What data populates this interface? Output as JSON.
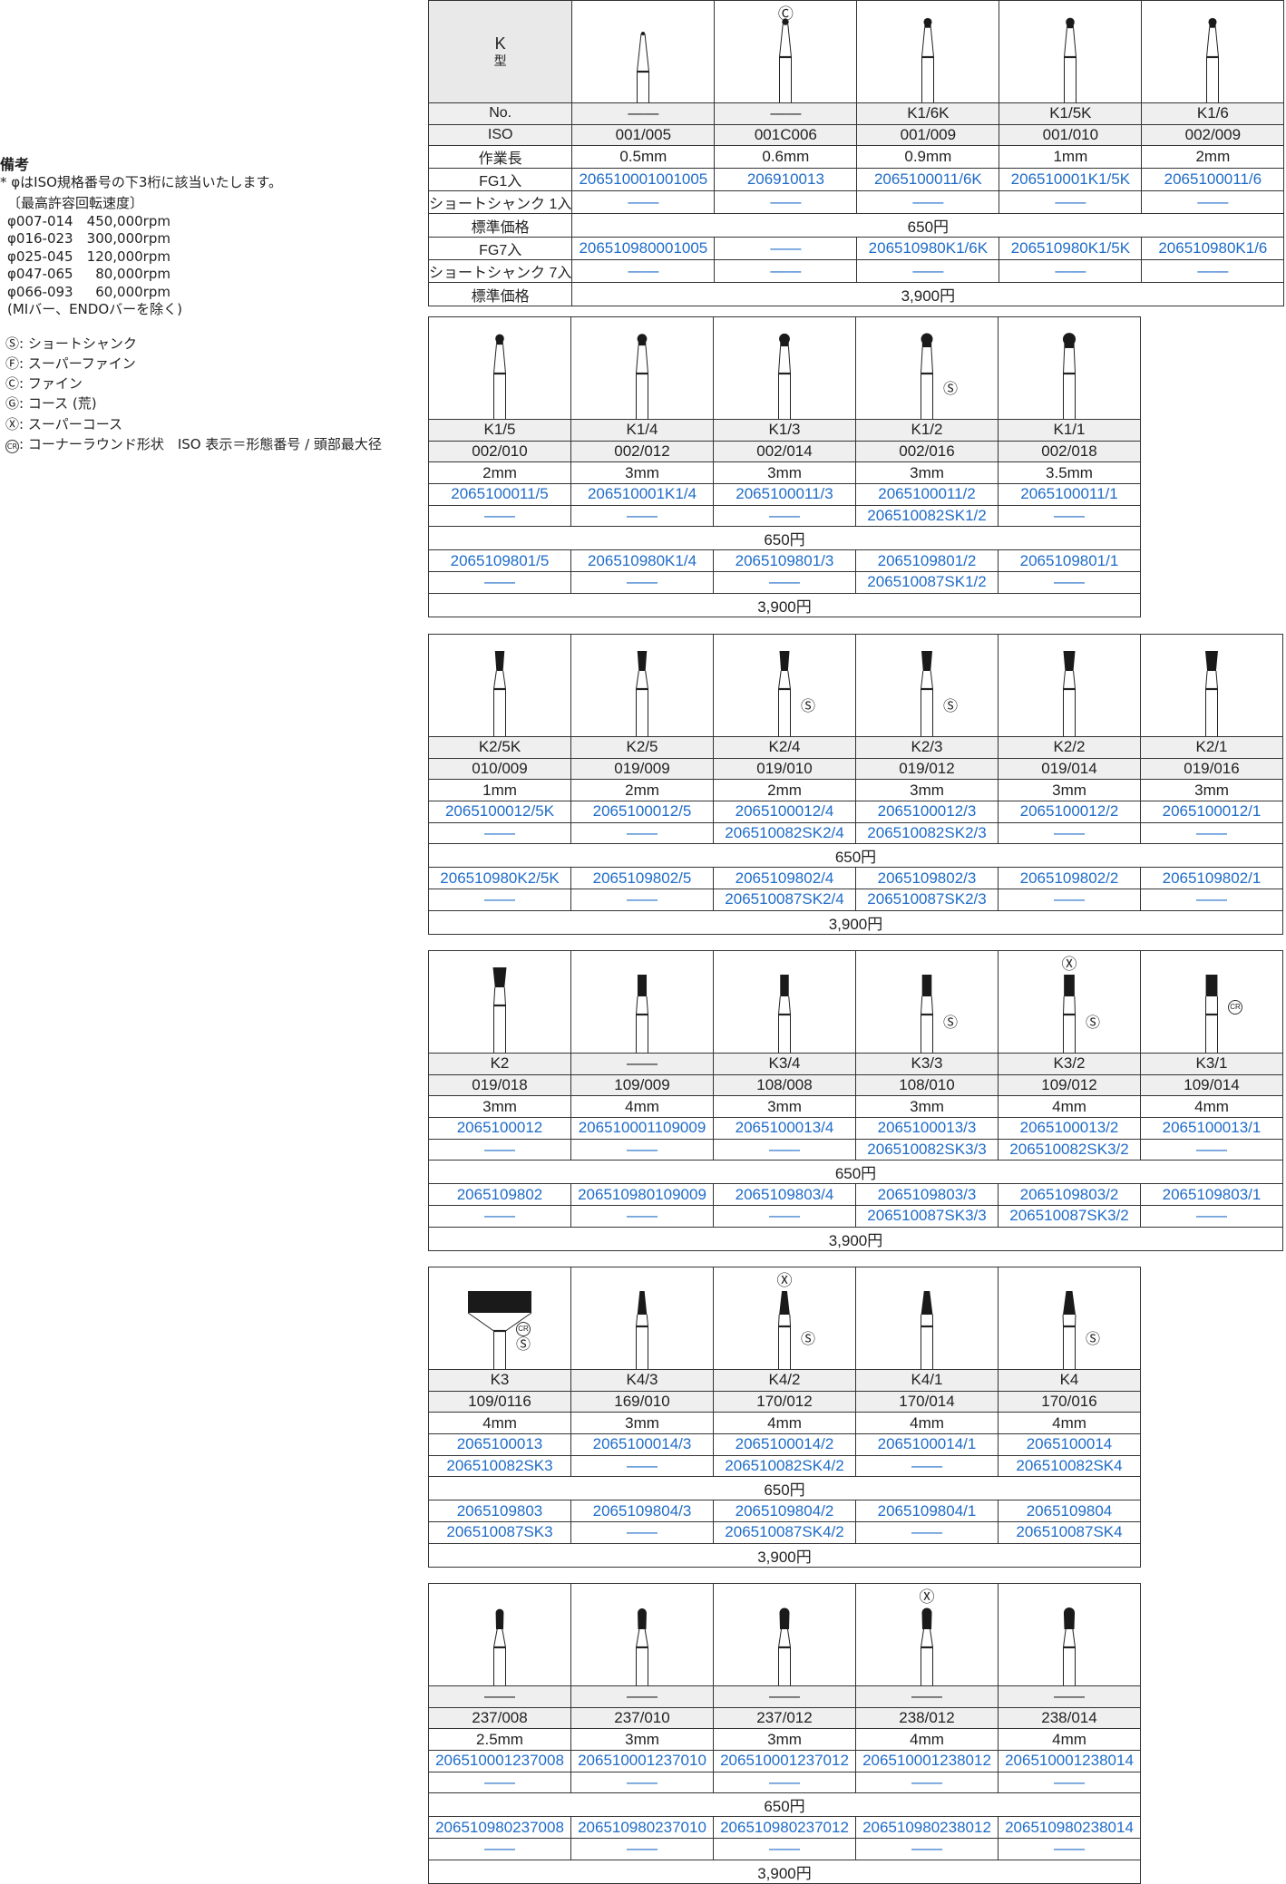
{
  "notes": {
    "title": "備考",
    "line1": "* φはISO規格番号の下3桁に該当いたします。",
    "speed_heading": "〔最高許容回転速度〕",
    "speeds": [
      {
        "range": "φ007-014",
        "rpm": "450,000rpm"
      },
      {
        "range": "φ016-023",
        "rpm": "300,000rpm"
      },
      {
        "range": "φ025-045",
        "rpm": "120,000rpm"
      },
      {
        "range": "φ047-065",
        "rpm": "80,000rpm"
      },
      {
        "range": "φ066-093",
        "rpm": "60,000rpm"
      }
    ],
    "exclusion": "(MIバー、ENDOバーを除く)",
    "legend": [
      {
        "mark": "Ⓢ",
        "text": ": ショートシャンク"
      },
      {
        "mark": "Ⓕ",
        "text": ": スーパーファイン"
      },
      {
        "mark": "Ⓒ",
        "text": ": ファイン"
      },
      {
        "mark": "Ⓖ",
        "text": ": コース (荒)"
      },
      {
        "mark": "Ⓧ",
        "text": ": スーパーコース"
      },
      {
        "mark": "CR",
        "text": ": コーナーラウンド形状　ISO 表示＝形態番号 / 頭部最大径"
      }
    ]
  },
  "labels": {
    "type_k": "K",
    "type_suffix": "型",
    "no": "No.",
    "iso": "ISO",
    "length": "作業長",
    "fg1": "FG1入",
    "ss1": "ショートシャンク 1入",
    "price": "標準価格",
    "fg7": "FG7入",
    "ss7": "ショートシャンク 7入",
    "dash": "——"
  },
  "colors": {
    "code": "#1f6cc8",
    "header_bg": "#efefef",
    "head": "#1a1a1a"
  },
  "blocks": [
    {
      "label_col": true,
      "price1": "650円",
      "price7": "3,900円",
      "items": [
        {
          "no": "——",
          "iso": "001/005",
          "length": "0.5mm",
          "fg1": "206510001001005",
          "ss1": "——",
          "fg7": "206510980001005",
          "ss7": "——",
          "shape": "cone-icon",
          "marks": {
            "top": "",
            "right": []
          }
        },
        {
          "no": "——",
          "iso": "001C006",
          "length": "0.6mm",
          "fg1": "206910013",
          "ss1": "——",
          "fg7": "——",
          "ss7": "——",
          "shape": "ball-icon",
          "marks": {
            "top": "Ⓒ",
            "right": []
          }
        },
        {
          "no": "K1/6K",
          "iso": "001/009",
          "length": "0.9mm",
          "fg1": "2065100011/6K",
          "ss1": "——",
          "fg7": "206510980K1/6K",
          "ss7": "——",
          "shape": "ball-icon",
          "marks": {
            "top": "",
            "right": []
          }
        },
        {
          "no": "K1/5K",
          "iso": "001/010",
          "length": "1mm",
          "fg1": "206510001K1/5K",
          "ss1": "——",
          "fg7": "206510980K1/5K",
          "ss7": "——",
          "shape": "ball-icon",
          "marks": {
            "top": "",
            "right": []
          }
        },
        {
          "no": "K1/6",
          "iso": "002/009",
          "length": "2mm",
          "fg1": "2065100011/6",
          "ss1": "——",
          "fg7": "206510980K1/6",
          "ss7": "——",
          "shape": "ball-icon",
          "marks": {
            "top": "",
            "right": []
          }
        }
      ]
    },
    {
      "label_col": false,
      "price1": "650円",
      "price7": "3,900円",
      "items": [
        {
          "no": "K1/5",
          "iso": "002/010",
          "length": "2mm",
          "fg1": "2065100011/5",
          "ss1": "——",
          "fg7": "2065109801/5",
          "ss7": "——",
          "shape": "ball-icon",
          "marks": {
            "top": "",
            "right": []
          }
        },
        {
          "no": "K1/4",
          "iso": "002/012",
          "length": "3mm",
          "fg1": "206510001K1/4",
          "ss1": "——",
          "fg7": "206510980K1/4",
          "ss7": "——",
          "shape": "ball-icon",
          "marks": {
            "top": "",
            "right": []
          }
        },
        {
          "no": "K1/3",
          "iso": "002/014",
          "length": "3mm",
          "fg1": "2065100011/3",
          "ss1": "——",
          "fg7": "2065109801/3",
          "ss7": "——",
          "shape": "ball-icon",
          "marks": {
            "top": "",
            "right": []
          }
        },
        {
          "no": "K1/2",
          "iso": "002/016",
          "length": "3mm",
          "fg1": "2065100011/2",
          "ss1": "206510082SK1/2",
          "fg7": "2065109801/2",
          "ss7": "206510087SK1/2",
          "shape": "ball-icon",
          "marks": {
            "top": "",
            "right": [
              "Ⓢ"
            ]
          }
        },
        {
          "no": "K1/1",
          "iso": "002/018",
          "length": "3.5mm",
          "fg1": "2065100011/1",
          "ss1": "——",
          "fg7": "2065109801/1",
          "ss7": "——",
          "shape": "ball-icon",
          "marks": {
            "top": "",
            "right": []
          }
        }
      ]
    },
    {
      "label_col": false,
      "price1": "650円",
      "price7": "3,900円",
      "items": [
        {
          "no": "K2/5K",
          "iso": "010/009",
          "length": "1mm",
          "fg1": "2065100012/5K",
          "ss1": "——",
          "fg7": "206510980K2/5K",
          "ss7": "——",
          "shape": "inverted-cone-icon",
          "marks": {
            "top": "",
            "right": []
          }
        },
        {
          "no": "K2/5",
          "iso": "019/009",
          "length": "2mm",
          "fg1": "2065100012/5",
          "ss1": "——",
          "fg7": "2065109802/5",
          "ss7": "——",
          "shape": "inverted-cone-icon",
          "marks": {
            "top": "",
            "right": []
          }
        },
        {
          "no": "K2/4",
          "iso": "019/010",
          "length": "2mm",
          "fg1": "2065100012/4",
          "ss1": "206510082SK2/4",
          "fg7": "2065109802/4",
          "ss7": "206510087SK2/4",
          "shape": "inverted-cone-icon",
          "marks": {
            "top": "",
            "right": [
              "Ⓢ"
            ]
          }
        },
        {
          "no": "K2/3",
          "iso": "019/012",
          "length": "3mm",
          "fg1": "2065100012/3",
          "ss1": "206510082SK2/3",
          "fg7": "2065109802/3",
          "ss7": "206510087SK2/3",
          "shape": "inverted-cone-icon",
          "marks": {
            "top": "",
            "right": [
              "Ⓢ"
            ]
          }
        },
        {
          "no": "K2/2",
          "iso": "019/014",
          "length": "3mm",
          "fg1": "2065100012/2",
          "ss1": "——",
          "fg7": "2065109802/2",
          "ss7": "——",
          "shape": "inverted-cone-icon",
          "marks": {
            "top": "",
            "right": []
          }
        },
        {
          "no": "K2/1",
          "iso": "019/016",
          "length": "3mm",
          "fg1": "2065100012/1",
          "ss1": "——",
          "fg7": "2065109802/1",
          "ss7": "——",
          "shape": "inverted-cone-icon",
          "marks": {
            "top": "",
            "right": []
          }
        }
      ]
    },
    {
      "label_col": false,
      "price1": "650円",
      "price7": "3,900円",
      "items": [
        {
          "no": "K2",
          "iso": "019/018",
          "length": "3mm",
          "fg1": "2065100012",
          "ss1": "——",
          "fg7": "2065109802",
          "ss7": "——",
          "shape": "inverted-cone-icon",
          "marks": {
            "top": "",
            "right": []
          }
        },
        {
          "no": "——",
          "iso": "109/009",
          "length": "4mm",
          "fg1": "206510001109009",
          "ss1": "——",
          "fg7": "206510980109009",
          "ss7": "——",
          "shape": "cylinder-icon",
          "marks": {
            "top": "",
            "right": []
          }
        },
        {
          "no": "K3/4",
          "iso": "108/008",
          "length": "3mm",
          "fg1": "2065100013/4",
          "ss1": "——",
          "fg7": "2065109803/4",
          "ss7": "——",
          "shape": "cylinder-icon",
          "marks": {
            "top": "",
            "right": []
          }
        },
        {
          "no": "K3/3",
          "iso": "108/010",
          "length": "3mm",
          "fg1": "2065100013/3",
          "ss1": "206510082SK3/3",
          "fg7": "2065109803/3",
          "ss7": "206510087SK3/3",
          "shape": "cylinder-icon",
          "marks": {
            "top": "",
            "right": [
              "Ⓢ"
            ]
          }
        },
        {
          "no": "K3/2",
          "iso": "109/012",
          "length": "4mm",
          "fg1": "2065100013/2",
          "ss1": "206510082SK3/2",
          "fg7": "2065109803/2",
          "ss7": "206510087SK3/2",
          "shape": "cylinder-icon",
          "marks": {
            "top": "Ⓧ",
            "right": [
              "Ⓢ"
            ]
          }
        },
        {
          "no": "K3/1",
          "iso": "109/014",
          "length": "4mm",
          "fg1": "2065100013/1",
          "ss1": "——",
          "fg7": "2065109803/1",
          "ss7": "——",
          "shape": "cylinder-icon",
          "marks": {
            "top": "",
            "right": [
              "CR"
            ]
          }
        }
      ]
    },
    {
      "label_col": false,
      "price1": "650円",
      "price7": "3,900円",
      "items": [
        {
          "no": "K3",
          "iso": "109/0116",
          "length": "4mm",
          "fg1": "2065100013",
          "ss1": "206510082SK3",
          "fg7": "2065109803",
          "ss7": "206510087SK3",
          "shape": "cylinder-icon",
          "marks": {
            "top": "",
            "right": [
              "CR",
              "Ⓢ"
            ]
          }
        },
        {
          "no": "K4/3",
          "iso": "169/010",
          "length": "3mm",
          "fg1": "2065100014/3",
          "ss1": "——",
          "fg7": "2065109804/3",
          "ss7": "——",
          "shape": "taper-icon",
          "marks": {
            "top": "",
            "right": []
          }
        },
        {
          "no": "K4/2",
          "iso": "170/012",
          "length": "4mm",
          "fg1": "2065100014/2",
          "ss1": "206510082SK4/2",
          "fg7": "2065109804/2",
          "ss7": "206510087SK4/2",
          "shape": "taper-icon",
          "marks": {
            "top": "Ⓧ",
            "right": [
              "Ⓢ"
            ]
          }
        },
        {
          "no": "K4/1",
          "iso": "170/014",
          "length": "4mm",
          "fg1": "2065100014/1",
          "ss1": "——",
          "fg7": "2065109804/1",
          "ss7": "——",
          "shape": "taper-icon",
          "marks": {
            "top": "",
            "right": []
          }
        },
        {
          "no": "K4",
          "iso": "170/016",
          "length": "4mm",
          "fg1": "2065100014",
          "ss1": "206510082SK4",
          "fg7": "2065109804",
          "ss7": "206510087SK4",
          "shape": "taper-icon",
          "marks": {
            "top": "",
            "right": [
              "Ⓢ"
            ]
          }
        }
      ]
    },
    {
      "label_col": false,
      "price1": "650円",
      "price7": "3,900円",
      "items": [
        {
          "no": "——",
          "iso": "237/008",
          "length": "2.5mm",
          "fg1": "206510001237008",
          "ss1": "——",
          "fg7": "206510980237008",
          "ss7": "——",
          "shape": "pear-icon",
          "marks": {
            "top": "",
            "right": []
          }
        },
        {
          "no": "——",
          "iso": "237/010",
          "length": "3mm",
          "fg1": "206510001237010",
          "ss1": "——",
          "fg7": "206510980237010",
          "ss7": "——",
          "shape": "pear-icon",
          "marks": {
            "top": "",
            "right": []
          }
        },
        {
          "no": "——",
          "iso": "237/012",
          "length": "3mm",
          "fg1": "206510001237012",
          "ss1": "——",
          "fg7": "206510980237012",
          "ss7": "——",
          "shape": "pear-icon",
          "marks": {
            "top": "",
            "right": []
          }
        },
        {
          "no": "——",
          "iso": "238/012",
          "length": "4mm",
          "fg1": "206510001238012",
          "ss1": "——",
          "fg7": "206510980238012",
          "ss7": "——",
          "shape": "pear-icon",
          "marks": {
            "top": "Ⓧ",
            "right": []
          }
        },
        {
          "no": "——",
          "iso": "238/014",
          "length": "4mm",
          "fg1": "206510001238014",
          "ss1": "——",
          "fg7": "206510980238014",
          "ss7": "——",
          "shape": "pear-icon",
          "marks": {
            "top": "",
            "right": []
          }
        }
      ]
    }
  ]
}
